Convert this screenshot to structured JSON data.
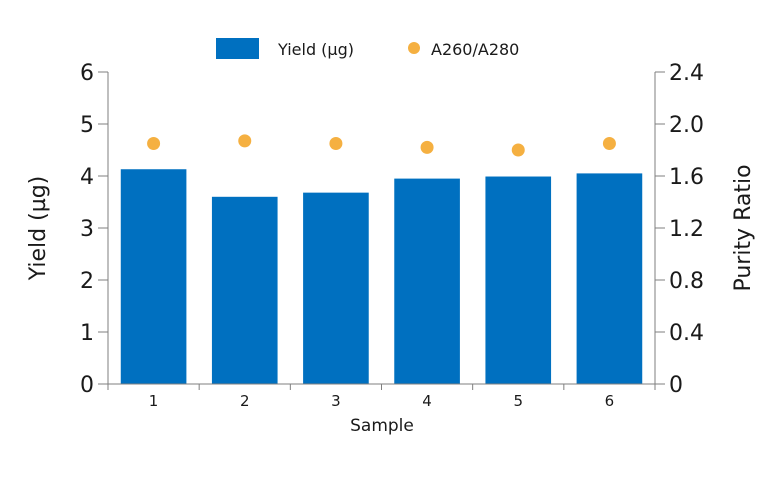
{
  "chart_data": {
    "type": "bar",
    "categories": [
      "1",
      "2",
      "3",
      "4",
      "5",
      "6"
    ],
    "series": [
      {
        "name": "Yield (µg)",
        "type": "bar",
        "axis": "left",
        "color": "#0070c0",
        "values": [
          4.13,
          3.6,
          3.68,
          3.95,
          3.99,
          4.05
        ]
      },
      {
        "name": "A260/A280",
        "type": "scatter",
        "axis": "right",
        "color": "#f5b041",
        "values": [
          1.85,
          1.87,
          1.85,
          1.82,
          1.8,
          1.85
        ]
      }
    ],
    "xlabel": "Sample",
    "ylabel": "Yield (µg)",
    "y2label": "Purity Ratio",
    "ylim": [
      0,
      6
    ],
    "y2lim": [
      0,
      2.4
    ],
    "yticks": [
      "0",
      "1",
      "2",
      "3",
      "4",
      "5",
      "6"
    ],
    "y2ticks": [
      "0",
      "0.4",
      "0.8",
      "1.2",
      "1.6",
      "2.0",
      "2.4"
    ],
    "legend": {
      "position": "top-center",
      "entries": [
        "Yield (µg)",
        "A260/A280"
      ]
    },
    "grid": false
  }
}
